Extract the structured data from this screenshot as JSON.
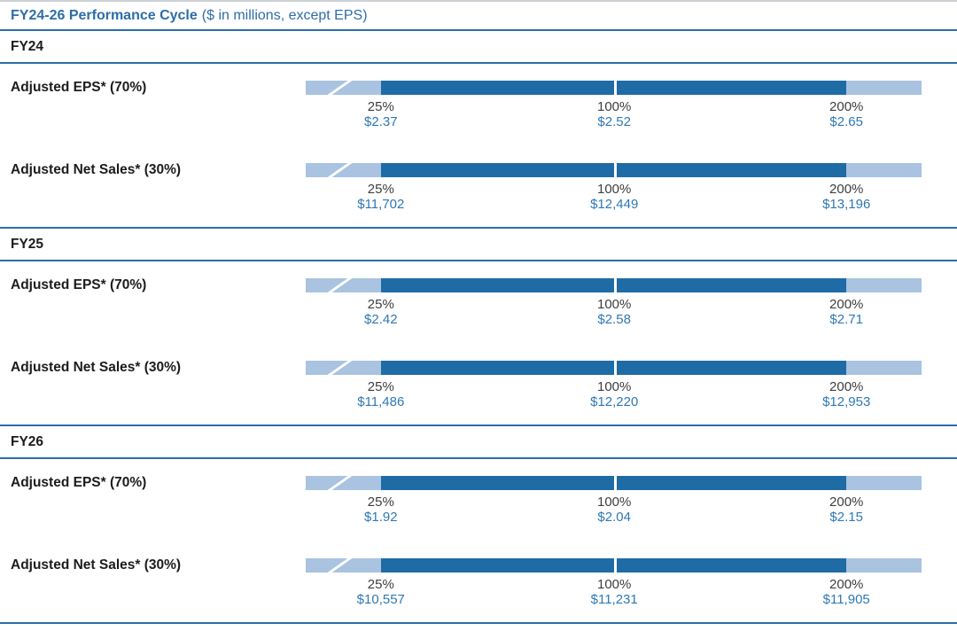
{
  "page": {
    "title_bold": "FY24-26 Performance Cycle",
    "title_rest": "($ in millions, except EPS)"
  },
  "colors": {
    "accent_line": "#2d6da8",
    "bar_dark": "#1f6ba5",
    "bar_light": "#a9c3e0",
    "value_text": "#2e78b4",
    "percent_text": "#3d3d3d",
    "label_text": "#1c1c1c"
  },
  "chart_data": {
    "type": "bar",
    "title": "FY24-26 Performance Cycle",
    "subtitle": "($ in millions, except EPS)",
    "payout_levels": [
      "25%",
      "100%",
      "200%"
    ],
    "layout": {
      "grid": false,
      "legend": "none",
      "bar_style": "payout-scale with axis-break at left, dark fill from 25% to 200% marker, white tick at 100%",
      "tick_positions_pct_of_bar_width": [
        12.2,
        50.1,
        87.8
      ],
      "fill_start_pct": 12.2,
      "fill_end_pct": 87.8
    },
    "sections": [
      {
        "year": "FY24",
        "metrics": [
          {
            "label": "Adjusted EPS* (70%)",
            "values": [
              "$2.37",
              "$2.52",
              "$2.65"
            ]
          },
          {
            "label": "Adjusted Net Sales* (30%)",
            "values": [
              "$11,702",
              "$12,449",
              "$13,196"
            ]
          }
        ]
      },
      {
        "year": "FY25",
        "metrics": [
          {
            "label": "Adjusted EPS* (70%)",
            "values": [
              "$2.42",
              "$2.58",
              "$2.71"
            ]
          },
          {
            "label": "Adjusted Net Sales* (30%)",
            "values": [
              "$11,486",
              "$12,220",
              "$12,953"
            ]
          }
        ]
      },
      {
        "year": "FY26",
        "metrics": [
          {
            "label": "Adjusted EPS* (70%)",
            "values": [
              "$1.92",
              "$2.04",
              "$2.15"
            ]
          },
          {
            "label": "Adjusted Net Sales* (30%)",
            "values": [
              "$10,557",
              "$11,231",
              "$11,905"
            ]
          }
        ]
      }
    ]
  }
}
